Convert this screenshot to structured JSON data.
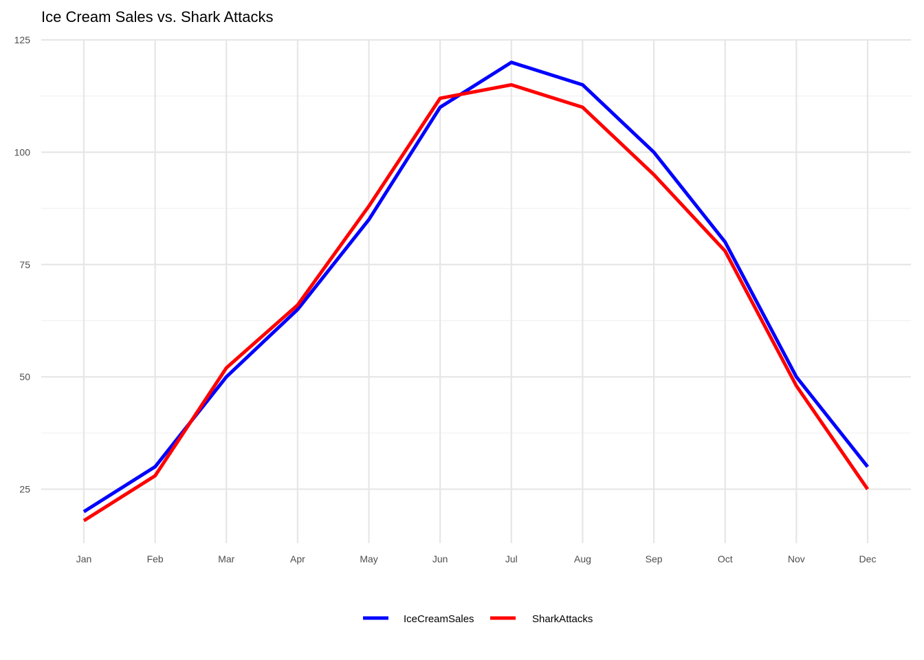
{
  "chart_data": {
    "type": "line",
    "title": "Ice Cream Sales vs. Shark Attacks",
    "xlabel": "",
    "ylabel": "",
    "categories": [
      "Jan",
      "Feb",
      "Mar",
      "Apr",
      "May",
      "Jun",
      "Jul",
      "Aug",
      "Sep",
      "Oct",
      "Nov",
      "Dec"
    ],
    "series": [
      {
        "name": "IceCreamSales",
        "color": "#0000ff",
        "values": [
          20,
          30,
          50,
          65,
          85,
          110,
          120,
          115,
          100,
          80,
          50,
          30
        ]
      },
      {
        "name": "SharkAttacks",
        "color": "#ff0000",
        "values": [
          18,
          28,
          52,
          66,
          88,
          112,
          115,
          110,
          95,
          78,
          48,
          25
        ]
      }
    ],
    "ylim": [
      13,
      125
    ],
    "y_ticks": [
      25,
      50,
      75,
      100,
      125
    ],
    "grid": true,
    "legend_position": "bottom"
  }
}
